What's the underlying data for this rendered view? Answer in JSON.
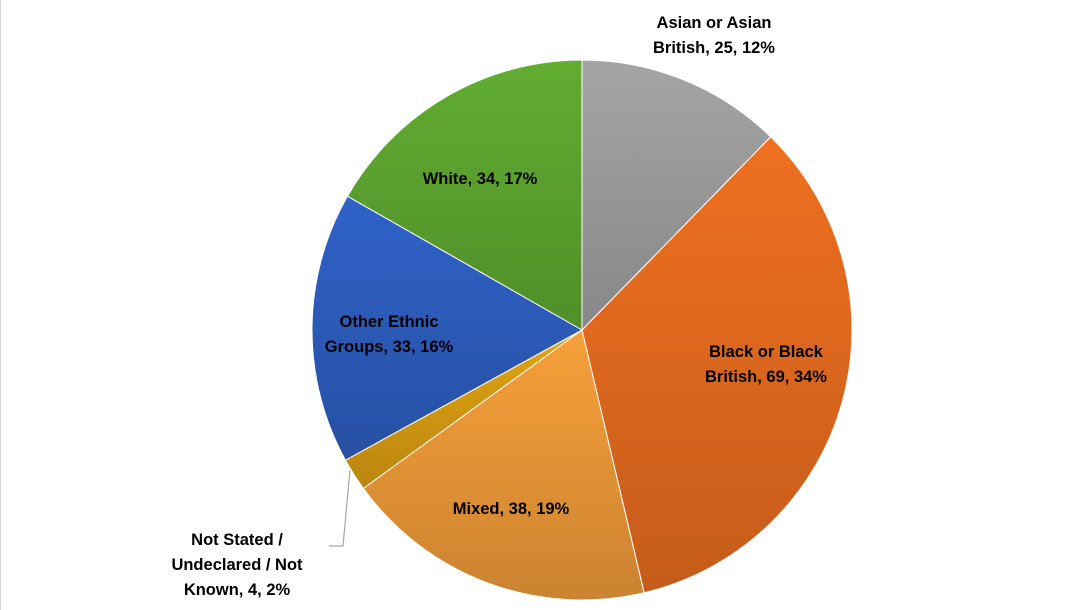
{
  "chart_data": {
    "type": "pie",
    "start_angle_deg": 0,
    "direction": "clockwise",
    "slices": [
      {
        "category": "Asian or Asian British",
        "value": 25,
        "percent": "12%",
        "label_lines": [
          "Asian or Asian",
          "British, 25, 12%"
        ],
        "color": "#a5a5a5"
      },
      {
        "category": "Black or Black British",
        "value": 69,
        "percent": "34%",
        "label_lines": [
          "Black or Black",
          "British, 69, 34%"
        ],
        "color": "#f07020"
      },
      {
        "category": "Mixed",
        "value": 38,
        "percent": "19%",
        "label_lines": [
          "Mixed, 38, 19%"
        ],
        "color": "#f7a03a"
      },
      {
        "category": "Not Stated / Undeclared / Not Known",
        "value": 4,
        "percent": "2%",
        "label_lines": [
          "Not Stated /",
          "Undeclared / Not",
          "Known, 4, 2%"
        ],
        "color": "#e3a412"
      },
      {
        "category": "Other Ethnic Groups",
        "value": 33,
        "percent": "16%",
        "label_lines": [
          "Other Ethnic",
          "Groups, 33, 16%"
        ],
        "color": "#2f62c8"
      },
      {
        "category": "White",
        "value": 34,
        "percent": "17%",
        "label_lines": [
          "White, 34, 17%"
        ],
        "color": "#62ad32"
      }
    ]
  }
}
